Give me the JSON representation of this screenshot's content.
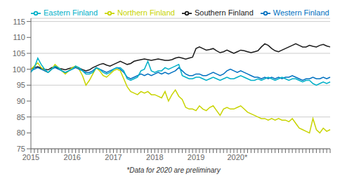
{
  "chart_data": {
    "type": "line",
    "annotations": [
      "*Data for 2020 are preliminary"
    ],
    "categories": [
      "2015",
      null,
      null,
      null,
      null,
      null,
      null,
      null,
      null,
      null,
      null,
      null,
      "2016",
      null,
      null,
      null,
      null,
      null,
      null,
      null,
      null,
      null,
      null,
      null,
      "2017",
      null,
      null,
      null,
      null,
      null,
      null,
      null,
      null,
      null,
      null,
      null,
      "2018",
      null,
      null,
      null,
      null,
      null,
      null,
      null,
      null,
      null,
      null,
      null,
      "2019",
      null,
      null,
      null,
      null,
      null,
      null,
      null,
      null,
      null,
      null,
      null,
      "2020*",
      null,
      null,
      null,
      null,
      null,
      null,
      null,
      null,
      null,
      null,
      null,
      null,
      null,
      null,
      null,
      null,
      null,
      null,
      null,
      null,
      null,
      null,
      null,
      null,
      null,
      null,
      null
    ],
    "series": [
      {
        "name": "Southern Finland",
        "color": "#1a1a1a",
        "values": [
          100.0,
          100.5,
          100.8,
          100.3,
          100.0,
          99.8,
          100.5,
          100.8,
          100.3,
          100.1,
          99.8,
          100.2,
          100.5,
          100.8,
          100.4,
          99.9,
          99.5,
          99.8,
          100.5,
          101.0,
          101.5,
          101.8,
          101.3,
          101.0,
          101.5,
          102.0,
          102.5,
          102.0,
          101.5,
          101.8,
          102.5,
          102.8,
          103.0,
          103.2,
          103.0,
          102.8,
          103.0,
          103.2,
          103.0,
          102.8,
          102.8,
          103.0,
          103.5,
          103.8,
          103.5,
          103.2,
          103.5,
          103.8,
          106.5,
          107.0,
          106.5,
          106.0,
          106.2,
          106.5,
          105.8,
          105.2,
          105.5,
          106.0,
          105.5,
          105.0,
          105.5,
          106.0,
          105.8,
          105.5,
          105.2,
          105.5,
          105.8,
          107.0,
          108.0,
          107.5,
          106.5,
          105.8,
          105.5,
          106.0,
          106.5,
          107.0,
          107.5,
          108.0,
          107.5,
          107.0,
          107.0,
          107.5,
          107.2,
          107.0,
          107.5,
          107.8,
          107.3,
          107.0
        ]
      },
      {
        "name": "Northern Finland",
        "color": "#c8d400",
        "values": [
          100.0,
          101.0,
          102.0,
          100.5,
          99.5,
          99.0,
          100.0,
          101.5,
          100.5,
          99.5,
          98.5,
          99.5,
          100.5,
          101.0,
          100.0,
          98.0,
          95.0,
          96.5,
          98.5,
          100.5,
          99.5,
          98.0,
          97.5,
          98.5,
          99.5,
          100.0,
          99.5,
          97.0,
          94.5,
          93.0,
          92.5,
          92.0,
          93.0,
          92.5,
          93.0,
          92.0,
          92.0,
          91.5,
          91.0,
          93.0,
          90.0,
          92.0,
          93.5,
          91.5,
          90.5,
          88.0,
          87.5,
          87.5,
          87.0,
          88.5,
          87.5,
          87.0,
          88.0,
          88.5,
          87.0,
          85.5,
          87.5,
          88.0,
          87.5,
          87.5,
          88.0,
          88.5,
          87.5,
          86.5,
          86.0,
          85.5,
          85.0,
          84.5,
          84.5,
          84.0,
          84.5,
          84.0,
          84.5,
          84.0,
          84.0,
          83.5,
          84.5,
          83.0,
          81.5,
          81.0,
          80.5,
          80.0,
          84.5,
          81.0,
          80.0,
          81.5,
          80.5,
          81.0
        ]
      },
      {
        "name": "Western Finland",
        "color": "#0070c0",
        "values": [
          99.5,
          100.0,
          100.5,
          100.0,
          99.5,
          99.0,
          100.0,
          100.5,
          100.0,
          99.5,
          99.0,
          99.5,
          100.0,
          100.5,
          100.0,
          99.5,
          99.0,
          99.0,
          99.5,
          100.5,
          100.0,
          99.5,
          99.0,
          99.5,
          100.0,
          100.5,
          100.0,
          99.0,
          97.5,
          97.0,
          97.5,
          98.0,
          98.5,
          98.0,
          98.5,
          98.0,
          98.5,
          99.0,
          98.5,
          99.0,
          98.5,
          99.0,
          99.5,
          100.5,
          99.5,
          98.5,
          98.0,
          98.0,
          98.5,
          98.5,
          98.0,
          98.0,
          98.5,
          99.0,
          98.5,
          98.0,
          98.5,
          99.5,
          100.0,
          99.5,
          99.0,
          99.5,
          99.0,
          98.5,
          98.0,
          97.5,
          97.5,
          97.0,
          97.5,
          97.0,
          97.5,
          97.0,
          97.5,
          97.0,
          97.5,
          97.5,
          98.0,
          97.5,
          97.0,
          96.5,
          97.0,
          97.0,
          97.5,
          97.0,
          97.0,
          97.5,
          97.0,
          97.5
        ]
      },
      {
        "name": "Eastern Finland",
        "color": "#00b0c8",
        "values": [
          99.0,
          100.5,
          103.5,
          101.5,
          100.0,
          99.0,
          100.0,
          101.0,
          100.5,
          99.5,
          99.0,
          99.5,
          100.0,
          101.0,
          100.5,
          99.5,
          98.5,
          98.5,
          99.0,
          100.5,
          100.0,
          99.0,
          98.5,
          99.0,
          100.0,
          100.5,
          100.5,
          99.5,
          97.0,
          96.5,
          97.0,
          97.5,
          99.5,
          100.0,
          102.5,
          99.5,
          99.0,
          99.5,
          99.5,
          100.5,
          100.0,
          100.5,
          101.0,
          101.5,
          98.0,
          97.5,
          97.0,
          97.0,
          97.5,
          97.5,
          97.0,
          96.5,
          97.0,
          97.5,
          97.0,
          96.5,
          97.0,
          97.5,
          97.0,
          97.0,
          97.5,
          98.0,
          97.5,
          97.0,
          96.5,
          96.5,
          97.0,
          96.5,
          97.0,
          97.5,
          97.0,
          96.5,
          97.0,
          97.5,
          97.0,
          96.5,
          97.0,
          97.0,
          96.5,
          96.0,
          96.5,
          96.5,
          95.5,
          95.0,
          95.5,
          96.0,
          95.5,
          96.0
        ]
      }
    ],
    "ylim": [
      75,
      116
    ],
    "yticks": [
      75,
      80,
      85,
      90,
      95,
      100,
      105,
      110,
      115
    ],
    "grid": "y",
    "legend": "upper left"
  }
}
